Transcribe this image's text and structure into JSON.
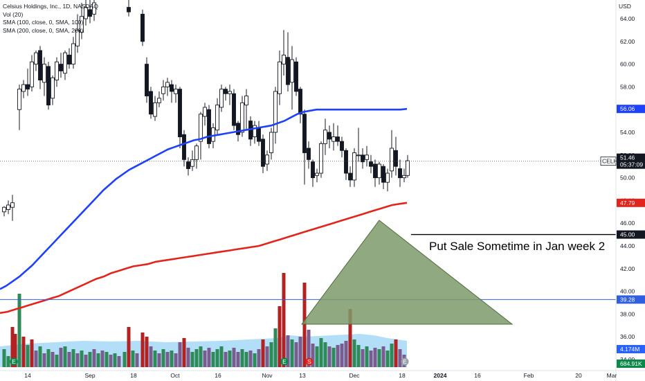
{
  "legend": {
    "symbol": "Celsius Holdings, Inc., 1D, NASDAQ",
    "vol": "Vol (20)",
    "sma100": "SMA (100, close, 0, SMA, 100)",
    "sma200": "SMA (200, close, 0, SMA, 200)"
  },
  "currency": "USD",
  "price_axis": {
    "ticks": [
      "64.00",
      "62.00",
      "60.00",
      "58.00",
      "56.00",
      "54.00",
      "52.00",
      "50.00",
      "48.00",
      "46.00",
      "44.00",
      "42.00",
      "40.00",
      "38.00",
      "36.00",
      "34.00"
    ],
    "tick_values": [
      64,
      62,
      60,
      58,
      56,
      54,
      52,
      50,
      48,
      46,
      44,
      42,
      40,
      38,
      36,
      34
    ]
  },
  "time_axis": {
    "labels": [
      "14",
      "Sep",
      "18",
      "Oct",
      "16",
      "Nov",
      "13",
      "Dec",
      "18",
      "2024",
      "16",
      "Feb",
      "20",
      "Mar"
    ],
    "bold": "2024"
  },
  "badges": {
    "sma100": {
      "text": "56.06",
      "value": 56.06,
      "color": "#1e40ff"
    },
    "last": {
      "ticker": "CELH",
      "price": "51.46",
      "countdown": "05:37:09",
      "value": 51.46,
      "color": "#131722"
    },
    "sma200": {
      "text": "47.79",
      "value": 47.79,
      "color": "#e3241b"
    },
    "hline_black": {
      "text": "45.00",
      "value": 45.0,
      "color": "#131722"
    },
    "hline_blue": {
      "text": "39.28",
      "value": 39.28,
      "color": "#2f5fe0"
    },
    "vol_ma": {
      "text": "4.174M",
      "color": "#2962ff"
    },
    "volume": {
      "text": "684.91K",
      "color": "#0a8a4a"
    }
  },
  "annotation": {
    "text": "Put Sale Sometime in Jan week 2"
  },
  "chart_data": {
    "type": "candlestick",
    "title": "Celsius Holdings, Inc., 1D, NASDAQ",
    "ylabel": "USD",
    "ylim": [
      33.6,
      64.8
    ],
    "hlines": [
      45.0,
      39.28
    ],
    "last_price": 51.46,
    "series": [
      {
        "name": "SMA (100, close, 0, SMA, 100)",
        "color": "#1e40ff",
        "last": 56.06
      },
      {
        "name": "SMA (200, close, 0, SMA, 200)",
        "color": "#e3241b",
        "last": 47.79
      },
      {
        "name": "Vol (20)",
        "last_ma": "4.174M",
        "last_volume": "684.91K"
      }
    ],
    "sma100": [
      40.2,
      40.5,
      40.9,
      41.3,
      41.8,
      42.3,
      42.9,
      43.5,
      44.1,
      44.7,
      45.3,
      45.9,
      46.5,
      47.1,
      47.7,
      48.3,
      48.9,
      49.4,
      49.9,
      50.3,
      50.7,
      51.0,
      51.3,
      51.6,
      51.9,
      52.2,
      52.5,
      52.7,
      52.9,
      53.1,
      53.3,
      53.4,
      53.6,
      53.7,
      53.8,
      53.9,
      54.0,
      54.1,
      54.2,
      54.3,
      54.4,
      54.5,
      54.6,
      54.8,
      55.0,
      55.3,
      55.6,
      55.8,
      55.9,
      56.0,
      56.0,
      56.0,
      56.0,
      56.0,
      56.0,
      56.0,
      56.0,
      56.0,
      56.0,
      56.0,
      56.0,
      56.0,
      56.0,
      56.06
    ],
    "sma200": [
      38.1,
      38.2,
      38.4,
      38.6,
      38.8,
      39.0,
      39.2,
      39.4,
      39.6,
      39.9,
      40.2,
      40.5,
      40.8,
      41.1,
      41.3,
      41.6,
      41.8,
      42.0,
      42.2,
      42.3,
      42.4,
      42.6,
      42.7,
      42.8,
      42.9,
      43.0,
      43.1,
      43.2,
      43.3,
      43.4,
      43.5,
      43.6,
      43.7,
      43.8,
      43.9,
      44.0,
      44.2,
      44.4,
      44.6,
      44.8,
      45.0,
      45.2,
      45.4,
      45.6,
      45.8,
      46.0,
      46.2,
      46.4,
      46.6,
      46.8,
      47.0,
      47.2,
      47.4,
      47.6,
      47.7,
      47.79
    ]
  }
}
